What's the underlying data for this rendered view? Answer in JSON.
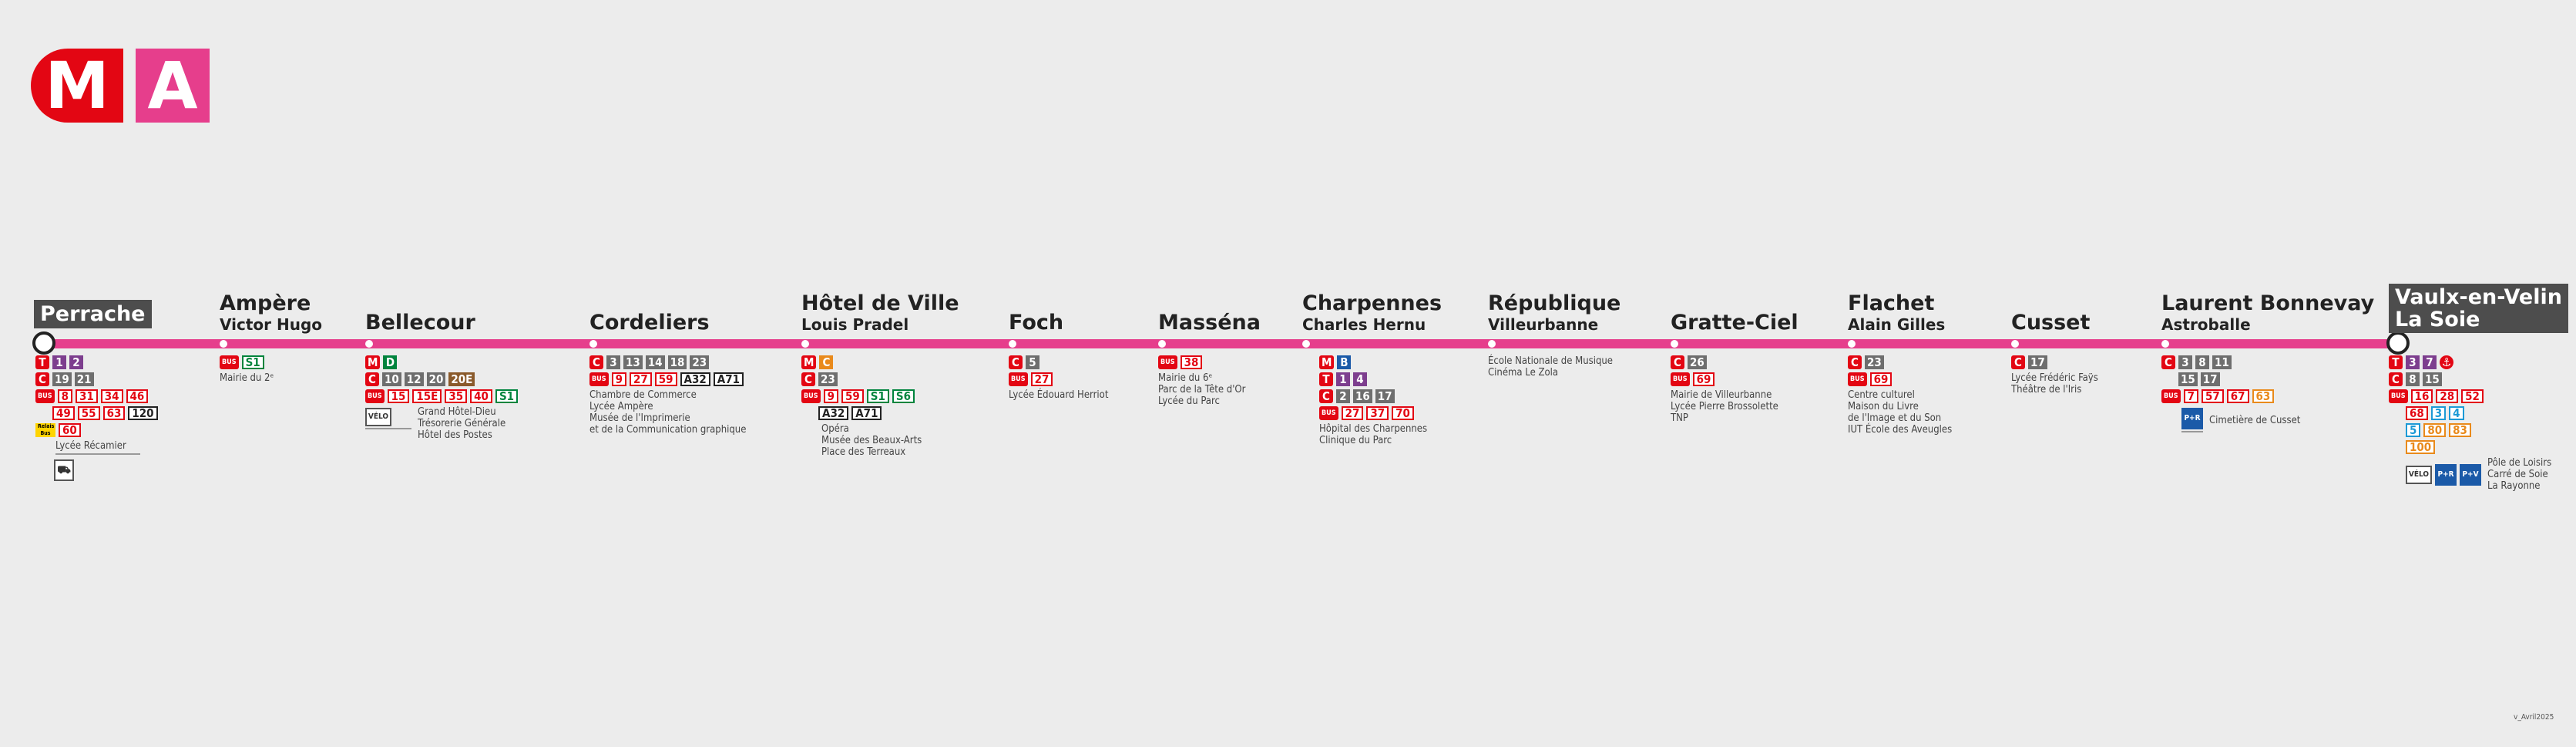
{
  "logo": {
    "metro": "M",
    "line": "A",
    "metro_color": "#e30613",
    "line_color": "#e63e8c"
  },
  "line_color": "#e63e8c",
  "stations": [
    {
      "name": "Perrache",
      "sub": ""
    },
    {
      "name": "Ampère",
      "sub": "Victor Hugo"
    },
    {
      "name": "Bellecour",
      "sub": ""
    },
    {
      "name": "Cordeliers",
      "sub": ""
    },
    {
      "name": "Hôtel de Ville",
      "sub": "Louis Pradel"
    },
    {
      "name": "Foch",
      "sub": ""
    },
    {
      "name": "Masséna",
      "sub": ""
    },
    {
      "name": "Charpennes",
      "sub": "Charles Hernu"
    },
    {
      "name": "République",
      "sub": "Villeurbanne"
    },
    {
      "name": "Gratte-Ciel",
      "sub": ""
    },
    {
      "name": "Flachet",
      "sub": "Alain Gilles"
    },
    {
      "name": "Cusset",
      "sub": ""
    },
    {
      "name": "Laurent Bonnevay",
      "sub": "Astroballe"
    },
    {
      "name": "Vaulx-en-Velin\nLa Soie",
      "sub": ""
    }
  ],
  "connections": {
    "perrache": {
      "tram": [
        "T",
        "1",
        "2"
      ],
      "chrono": [
        "C",
        "19",
        "21"
      ],
      "bus1": [
        "BUS",
        "8",
        "31",
        "34",
        "46"
      ],
      "bus2": [
        "49",
        "55",
        "63",
        "120"
      ],
      "relais": [
        "Relais Bus",
        "60"
      ],
      "poi": [
        "Lycée Récamier"
      ]
    },
    "ampere": {
      "bus": [
        "BUS",
        "S1"
      ],
      "poi": [
        "Mairie du 2ᵉ"
      ]
    },
    "bellecour": {
      "metro": [
        "M",
        "D"
      ],
      "chrono": [
        "C",
        "10",
        "12",
        "20",
        "20E"
      ],
      "bus": [
        "BUS",
        "15",
        "15E",
        "35",
        "40",
        "S1"
      ],
      "poi": [
        "Grand Hôtel-Dieu",
        "Trésorerie Générale",
        "Hôtel des Postes"
      ],
      "pict": "VÉLO"
    },
    "cordeliers": {
      "chrono": [
        "C",
        "3",
        "13",
        "14",
        "18",
        "23"
      ],
      "bus": [
        "BUS",
        "9",
        "27",
        "59",
        "A32",
        "A71"
      ],
      "poi": [
        "Chambre de Commerce",
        "Lycée Ampère",
        "Musée de l'Imprimerie",
        "et de la Communication graphique"
      ]
    },
    "hotel": {
      "metro": [
        "M",
        "C"
      ],
      "chrono": [
        "C",
        "23"
      ],
      "bus": [
        "BUS",
        "9",
        "59",
        "S1",
        "S6"
      ],
      "bus2": [
        "A32",
        "A71"
      ],
      "poi": [
        "Opéra",
        "Musée des Beaux-Arts",
        "Place des Terreaux"
      ]
    },
    "foch": {
      "chrono": [
        "C",
        "5"
      ],
      "bus": [
        "BUS",
        "27"
      ],
      "poi": [
        "Lycée Édouard Herriot"
      ]
    },
    "massena": {
      "bus": [
        "BUS",
        "38"
      ],
      "poi": [
        "Mairie du 6ᵉ",
        "Parc de la Tête d'Or",
        "Lycée du Parc"
      ]
    },
    "charpennes": {
      "metro": [
        "M",
        "B"
      ],
      "tram": [
        "T",
        "1",
        "4"
      ],
      "chrono": [
        "C",
        "2",
        "16",
        "17"
      ],
      "bus": [
        "BUS",
        "27",
        "37",
        "70"
      ],
      "poi": [
        "Hôpital des Charpennes",
        "Clinique du Parc"
      ]
    },
    "republique": {
      "poi": [
        "École Nationale de Musique",
        "Cinéma Le Zola"
      ]
    },
    "gratte": {
      "chrono": [
        "C",
        "26"
      ],
      "bus": [
        "BUS",
        "69"
      ],
      "poi": [
        "Mairie de Villeurbanne",
        "Lycée Pierre Brossolette",
        "TNP"
      ]
    },
    "flachet": {
      "chrono": [
        "C",
        "23"
      ],
      "bus": [
        "BUS",
        "69"
      ],
      "poi": [
        "Centre culturel",
        "Maison du Livre",
        "de l'Image et du Son",
        "IUT École des Aveugles"
      ]
    },
    "cusset": {
      "chrono": [
        "C",
        "17"
      ],
      "poi": [
        "Lycée Frédéric Faÿs",
        "Théâtre de l'Iris"
      ]
    },
    "bonnevay": {
      "chrono": [
        "C",
        "3",
        "8",
        "11"
      ],
      "chrono2": [
        "15",
        "17"
      ],
      "bus": [
        "BUS",
        "7",
        "57",
        "67",
        "63"
      ],
      "prk": "P+R",
      "poi": [
        "Cimetière de Cusset"
      ]
    },
    "vaulx": {
      "tram": [
        "T",
        "3",
        "7",
        "⚓"
      ],
      "chrono": [
        "C",
        "8",
        "15"
      ],
      "bus": [
        "BUS",
        "16",
        "28",
        "52"
      ],
      "bus2": [
        "68",
        "3",
        "4"
      ],
      "bus3": [
        "5",
        "80",
        "83"
      ],
      "bus4": [
        "100"
      ],
      "pict": "VÉLO",
      "prk": [
        "P+R",
        "P+V"
      ],
      "poi": [
        "Pôle de Loisirs",
        "Carré de Soie",
        "La Rayonne"
      ]
    }
  },
  "version": "v_Avril2025"
}
